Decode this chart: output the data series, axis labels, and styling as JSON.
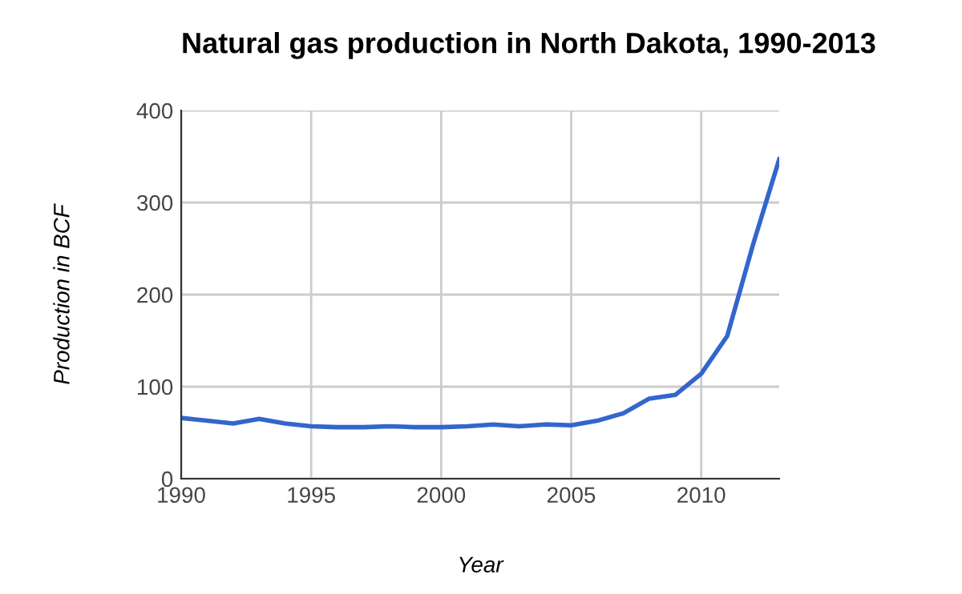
{
  "chart_data": {
    "type": "line",
    "title": "Natural gas production in North Dakota, 1990-2013",
    "xlabel": "Year",
    "ylabel": "Production in BCF",
    "x": [
      1990,
      1991,
      1992,
      1993,
      1994,
      1995,
      1996,
      1997,
      1998,
      1999,
      2000,
      2001,
      2002,
      2003,
      2004,
      2005,
      2006,
      2007,
      2008,
      2009,
      2010,
      2011,
      2012,
      2013
    ],
    "series": [
      {
        "color": "#3366cc",
        "values": [
          66,
          63,
          60,
          65,
          60,
          57,
          56,
          56,
          57,
          56,
          56,
          57,
          59,
          57,
          59,
          58,
          63,
          71,
          87,
          91,
          114,
          155,
          255,
          347
        ]
      }
    ],
    "xlim": [
      1990,
      2013
    ],
    "xticks": [
      1990,
      1995,
      2000,
      2005,
      2010
    ],
    "ylim": [
      0,
      400
    ],
    "yticks": [
      0,
      100,
      200,
      300,
      400
    ],
    "grid": true,
    "legend": false,
    "marker": "none",
    "line_style": "solid"
  }
}
